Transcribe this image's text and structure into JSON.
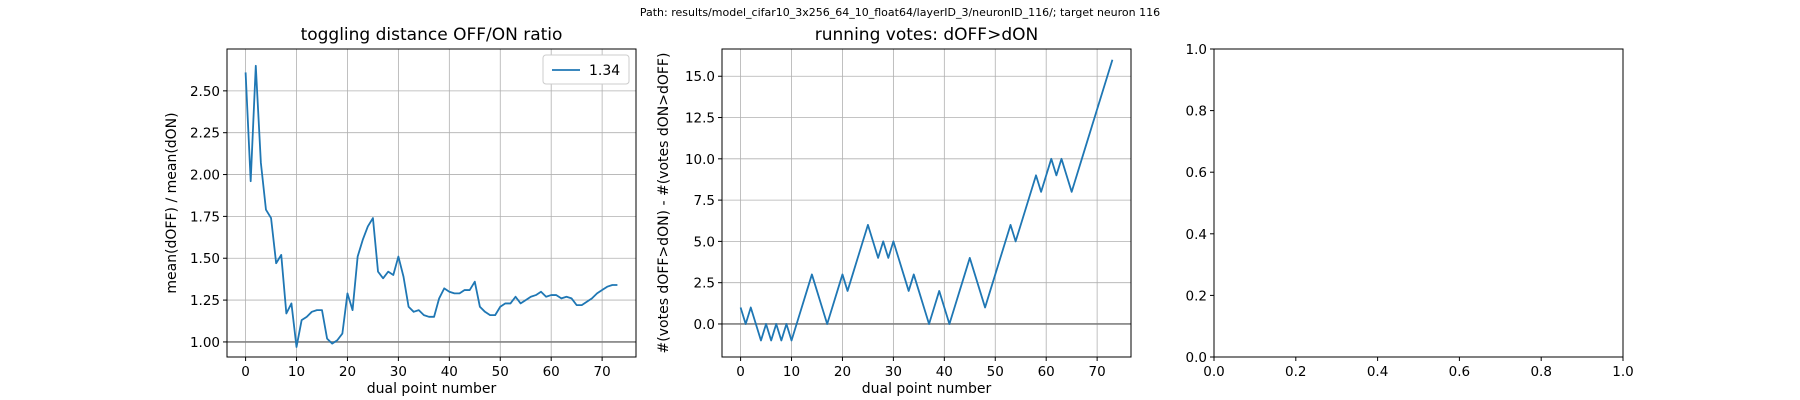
{
  "suptitle": "Path: results/model_cifar10_3x256_64_10_float64/layerID_3/neuronID_116/; target neuron 116",
  "chart_data": [
    {
      "type": "line",
      "title": "toggling distance OFF/ON ratio",
      "xlabel": "dual point number",
      "ylabel": "mean(dOFF) / mean(dON)",
      "xlim": [
        -3.65,
        76.65
      ],
      "ylim": [
        0.91,
        2.75
      ],
      "xticks": [
        0,
        10,
        20,
        30,
        40,
        50,
        60,
        70
      ],
      "yticks": [
        1.0,
        1.25,
        1.5,
        1.75,
        2.0,
        2.25,
        2.5
      ],
      "ytick_labels": [
        "1.00",
        "1.25",
        "1.50",
        "1.75",
        "2.00",
        "2.25",
        "2.50"
      ],
      "grid": true,
      "legend": "top-right",
      "hline": {
        "y": 1.0,
        "color": "#808080"
      },
      "series": [
        {
          "name": "1.34",
          "color": "#1f77b4",
          "x": [
            0,
            1,
            2,
            3,
            4,
            5,
            6,
            7,
            8,
            9,
            10,
            11,
            12,
            13,
            14,
            15,
            16,
            17,
            18,
            19,
            20,
            21,
            22,
            23,
            24,
            25,
            26,
            27,
            28,
            29,
            30,
            31,
            32,
            33,
            34,
            35,
            36,
            37,
            38,
            39,
            40,
            41,
            42,
            43,
            44,
            45,
            46,
            47,
            48,
            49,
            50,
            51,
            52,
            53,
            54,
            55,
            56,
            57,
            58,
            59,
            60,
            61,
            62,
            63,
            64,
            65,
            66,
            67,
            68,
            69,
            70,
            71,
            72,
            73
          ],
          "y": [
            2.61,
            1.96,
            2.65,
            2.07,
            1.79,
            1.74,
            1.47,
            1.52,
            1.17,
            1.23,
            0.97,
            1.13,
            1.15,
            1.18,
            1.19,
            1.19,
            1.02,
            0.99,
            1.01,
            1.05,
            1.29,
            1.19,
            1.51,
            1.61,
            1.69,
            1.74,
            1.42,
            1.38,
            1.42,
            1.4,
            1.51,
            1.39,
            1.21,
            1.18,
            1.19,
            1.16,
            1.15,
            1.15,
            1.26,
            1.32,
            1.3,
            1.29,
            1.29,
            1.31,
            1.31,
            1.36,
            1.21,
            1.18,
            1.16,
            1.16,
            1.21,
            1.23,
            1.23,
            1.27,
            1.23,
            1.25,
            1.27,
            1.28,
            1.3,
            1.27,
            1.28,
            1.28,
            1.26,
            1.27,
            1.26,
            1.22,
            1.22,
            1.24,
            1.26,
            1.29,
            1.31,
            1.33,
            1.34,
            1.34
          ]
        }
      ]
    },
    {
      "type": "line",
      "title": "running votes: dOFF>dON",
      "xlabel": "dual point number",
      "ylabel": "#(votes dOFF>dON) - #(votes dON>dOFF)",
      "xlim": [
        -3.65,
        76.65
      ],
      "ylim": [
        -2.0,
        16.65
      ],
      "xticks": [
        0,
        10,
        20,
        30,
        40,
        50,
        60,
        70
      ],
      "yticks": [
        0.0,
        2.5,
        5.0,
        7.5,
        10.0,
        12.5,
        15.0
      ],
      "ytick_labels": [
        "0.0",
        "2.5",
        "5.0",
        "7.5",
        "10.0",
        "12.5",
        "15.0"
      ],
      "grid": true,
      "hline": {
        "y": 0.0,
        "color": "#808080"
      },
      "series": [
        {
          "color": "#1f77b4",
          "x": [
            0,
            1,
            2,
            3,
            4,
            5,
            6,
            7,
            8,
            9,
            10,
            11,
            12,
            13,
            14,
            15,
            16,
            17,
            18,
            19,
            20,
            21,
            22,
            23,
            24,
            25,
            26,
            27,
            28,
            29,
            30,
            31,
            32,
            33,
            34,
            35,
            36,
            37,
            38,
            39,
            40,
            41,
            42,
            43,
            44,
            45,
            46,
            47,
            48,
            49,
            50,
            51,
            52,
            53,
            54,
            55,
            56,
            57,
            58,
            59,
            60,
            61,
            62,
            63,
            64,
            65,
            66,
            67,
            68,
            69,
            70,
            71,
            72,
            73
          ],
          "y": [
            1,
            0,
            1,
            0,
            -1,
            0,
            -1,
            0,
            -1,
            0,
            -1,
            0,
            1,
            2,
            3,
            2,
            1,
            0,
            1,
            2,
            3,
            2,
            3,
            4,
            5,
            6,
            5,
            4,
            5,
            4,
            5,
            4,
            3,
            2,
            3,
            2,
            1,
            0,
            1,
            2,
            1,
            0,
            1,
            2,
            3,
            4,
            3,
            2,
            1,
            2,
            3,
            4,
            5,
            6,
            5,
            6,
            7,
            8,
            9,
            8,
            9,
            10,
            9,
            10,
            9,
            8,
            9,
            10,
            11,
            12,
            13,
            14,
            15,
            16
          ]
        }
      ]
    },
    {
      "type": "line",
      "title": "",
      "xlim": [
        0.0,
        1.0
      ],
      "ylim": [
        0.0,
        1.0
      ],
      "xticks": [
        0.0,
        0.2,
        0.4,
        0.6,
        0.8,
        1.0
      ],
      "yticks": [
        0.0,
        0.2,
        0.4,
        0.6,
        0.8,
        1.0
      ],
      "xtick_labels": [
        "0.0",
        "0.2",
        "0.4",
        "0.6",
        "0.8",
        "1.0"
      ],
      "ytick_labels": [
        "0.0",
        "0.2",
        "0.4",
        "0.6",
        "0.8",
        "1.0"
      ],
      "grid": false,
      "series": []
    }
  ]
}
